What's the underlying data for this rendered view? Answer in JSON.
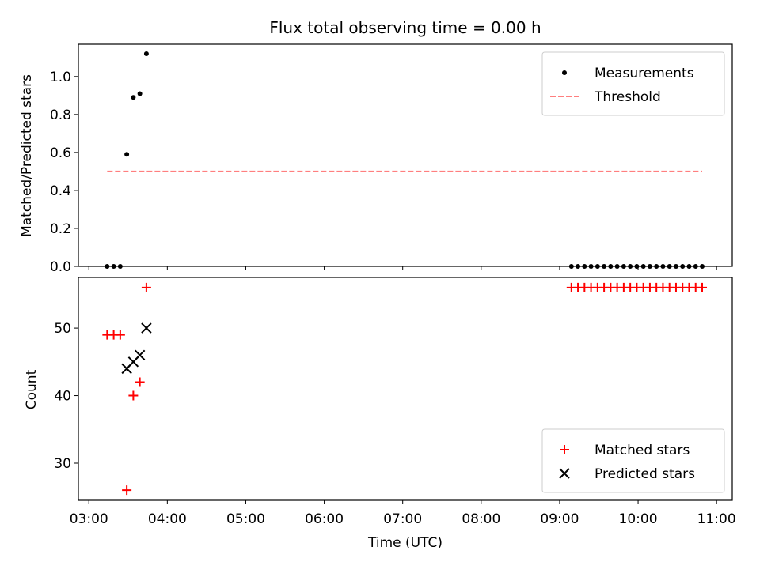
{
  "chart_data": [
    {
      "type": "scatter",
      "title": "Flux total observing time = 0.00 h",
      "ylabel": "Matched/Predicted stars",
      "xlabel": "",
      "xlim": [
        "02:52",
        "11:12"
      ],
      "ylim": [
        0.0,
        1.17
      ],
      "yticks": [
        0.0,
        0.2,
        0.4,
        0.6,
        0.8,
        1.0
      ],
      "ytick_labels": [
        "0.0",
        "0.2",
        "0.4",
        "0.6",
        "0.8",
        "1.0"
      ],
      "legend_position": "upper right",
      "series": [
        {
          "name": "Measurements",
          "kind": "points",
          "color": "#000000",
          "points": [
            {
              "x": "03:14",
              "y": 0.0
            },
            {
              "x": "03:19",
              "y": 0.0
            },
            {
              "x": "03:24",
              "y": 0.0
            },
            {
              "x": "03:29",
              "y": 0.59
            },
            {
              "x": "03:34",
              "y": 0.89
            },
            {
              "x": "03:39",
              "y": 0.91
            },
            {
              "x": "03:44",
              "y": 1.12
            },
            {
              "x": "09:09",
              "y": 0.0
            },
            {
              "x": "09:14",
              "y": 0.0
            },
            {
              "x": "09:19",
              "y": 0.0
            },
            {
              "x": "09:24",
              "y": 0.0
            },
            {
              "x": "09:29",
              "y": 0.0
            },
            {
              "x": "09:34",
              "y": 0.0
            },
            {
              "x": "09:39",
              "y": 0.0
            },
            {
              "x": "09:44",
              "y": 0.0
            },
            {
              "x": "09:49",
              "y": 0.0
            },
            {
              "x": "09:54",
              "y": 0.0
            },
            {
              "x": "09:59",
              "y": 0.0
            },
            {
              "x": "10:04",
              "y": 0.0
            },
            {
              "x": "10:09",
              "y": 0.0
            },
            {
              "x": "10:14",
              "y": 0.0
            },
            {
              "x": "10:19",
              "y": 0.0
            },
            {
              "x": "10:24",
              "y": 0.0
            },
            {
              "x": "10:29",
              "y": 0.0
            },
            {
              "x": "10:34",
              "y": 0.0
            },
            {
              "x": "10:39",
              "y": 0.0
            },
            {
              "x": "10:44",
              "y": 0.0
            },
            {
              "x": "10:49",
              "y": 0.0
            }
          ]
        },
        {
          "name": "Threshold",
          "kind": "dashed-line",
          "color": "#ff7f7f",
          "points": [
            {
              "x": "03:14",
              "y": 0.5
            },
            {
              "x": "10:49",
              "y": 0.5
            }
          ]
        }
      ]
    },
    {
      "type": "scatter",
      "title": "",
      "ylabel": "Count",
      "xlabel": "Time (UTC)",
      "xlim": [
        "02:52",
        "11:12"
      ],
      "ylim": [
        24.5,
        57.5
      ],
      "yticks": [
        30,
        40,
        50
      ],
      "ytick_labels": [
        "30",
        "40",
        "50"
      ],
      "xticks": [
        "03:00",
        "04:00",
        "05:00",
        "06:00",
        "07:00",
        "08:00",
        "09:00",
        "10:00",
        "11:00"
      ],
      "xtick_labels": [
        "03:00",
        "04:00",
        "05:00",
        "06:00",
        "07:00",
        "08:00",
        "09:00",
        "10:00",
        "11:00"
      ],
      "legend_position": "lower right",
      "series": [
        {
          "name": "Matched stars",
          "kind": "plus",
          "color": "#ff0000",
          "points": [
            {
              "x": "03:14",
              "y": 49
            },
            {
              "x": "03:19",
              "y": 49
            },
            {
              "x": "03:24",
              "y": 49
            },
            {
              "x": "03:29",
              "y": 26
            },
            {
              "x": "03:34",
              "y": 40
            },
            {
              "x": "03:39",
              "y": 42
            },
            {
              "x": "03:44",
              "y": 56
            },
            {
              "x": "09:09",
              "y": 56
            },
            {
              "x": "09:14",
              "y": 56
            },
            {
              "x": "09:19",
              "y": 56
            },
            {
              "x": "09:24",
              "y": 56
            },
            {
              "x": "09:29",
              "y": 56
            },
            {
              "x": "09:34",
              "y": 56
            },
            {
              "x": "09:39",
              "y": 56
            },
            {
              "x": "09:44",
              "y": 56
            },
            {
              "x": "09:49",
              "y": 56
            },
            {
              "x": "09:54",
              "y": 56
            },
            {
              "x": "09:59",
              "y": 56
            },
            {
              "x": "10:04",
              "y": 56
            },
            {
              "x": "10:09",
              "y": 56
            },
            {
              "x": "10:14",
              "y": 56
            },
            {
              "x": "10:19",
              "y": 56
            },
            {
              "x": "10:24",
              "y": 56
            },
            {
              "x": "10:29",
              "y": 56
            },
            {
              "x": "10:34",
              "y": 56
            },
            {
              "x": "10:39",
              "y": 56
            },
            {
              "x": "10:44",
              "y": 56
            },
            {
              "x": "10:49",
              "y": 56
            }
          ]
        },
        {
          "name": "Predicted stars",
          "kind": "x",
          "color": "#000000",
          "points": [
            {
              "x": "03:29",
              "y": 44
            },
            {
              "x": "03:34",
              "y": 45
            },
            {
              "x": "03:39",
              "y": 46
            },
            {
              "x": "03:44",
              "y": 50
            }
          ]
        }
      ]
    }
  ]
}
